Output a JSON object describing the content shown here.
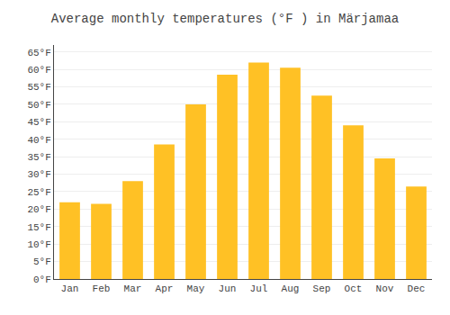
{
  "chart_data": {
    "type": "bar",
    "title": "Average monthly temperatures (°F ) in Märjamaa",
    "categories": [
      "Jan",
      "Feb",
      "Mar",
      "Apr",
      "May",
      "Jun",
      "Jul",
      "Aug",
      "Sep",
      "Oct",
      "Nov",
      "Dec"
    ],
    "values": [
      22,
      21.5,
      28,
      38.5,
      50,
      58.5,
      62,
      60.5,
      52.5,
      44,
      34.5,
      26.5
    ],
    "color": "#FFC125",
    "ylim": [
      0,
      67
    ],
    "yticks": [
      {
        "value": 0,
        "label": "0°F"
      },
      {
        "value": 5,
        "label": "5°F"
      },
      {
        "value": 10,
        "label": "10°F"
      },
      {
        "value": 15,
        "label": "15°F"
      },
      {
        "value": 20,
        "label": "20°F"
      },
      {
        "value": 25,
        "label": "25°F"
      },
      {
        "value": 30,
        "label": "30°F"
      },
      {
        "value": 35,
        "label": "35°F"
      },
      {
        "value": 40,
        "label": "40°F"
      },
      {
        "value": 45,
        "label": "45°F"
      },
      {
        "value": 50,
        "label": "50°F"
      },
      {
        "value": 55,
        "label": "55°F"
      },
      {
        "value": 60,
        "label": "60°F"
      },
      {
        "value": 65,
        "label": "65°F"
      }
    ],
    "grid": true
  }
}
